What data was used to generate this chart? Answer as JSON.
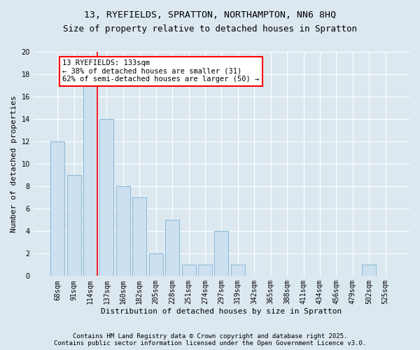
{
  "title1": "13, RYEFIELDS, SPRATTON, NORTHAMPTON, NN6 8HQ",
  "title2": "Size of property relative to detached houses in Spratton",
  "xlabel": "Distribution of detached houses by size in Spratton",
  "ylabel": "Number of detached properties",
  "categories": [
    "68sqm",
    "91sqm",
    "114sqm",
    "137sqm",
    "160sqm",
    "182sqm",
    "205sqm",
    "228sqm",
    "251sqm",
    "274sqm",
    "297sqm",
    "319sqm",
    "342sqm",
    "365sqm",
    "388sqm",
    "411sqm",
    "434sqm",
    "456sqm",
    "479sqm",
    "502sqm",
    "525sqm"
  ],
  "values": [
    12,
    9,
    17,
    14,
    8,
    7,
    2,
    5,
    1,
    1,
    4,
    1,
    0,
    0,
    0,
    0,
    0,
    0,
    0,
    1,
    0
  ],
  "bar_color": "#cce0f0",
  "bar_edge_color": "#8ab8d8",
  "red_line_index": 2,
  "annotation_text": "13 RYEFIELDS: 133sqm\n← 38% of detached houses are smaller (31)\n62% of semi-detached houses are larger (50) →",
  "annotation_box_color": "white",
  "annotation_box_edge_color": "red",
  "ylim": [
    0,
    20
  ],
  "yticks": [
    0,
    2,
    4,
    6,
    8,
    10,
    12,
    14,
    16,
    18,
    20
  ],
  "background_color": "#dce8f0",
  "grid_color": "white",
  "footer_text": "Contains HM Land Registry data © Crown copyright and database right 2025.\nContains public sector information licensed under the Open Government Licence v3.0.",
  "title1_fontsize": 9.5,
  "title2_fontsize": 9,
  "axis_label_fontsize": 8,
  "tick_fontsize": 7,
  "annotation_fontsize": 7.5,
  "footer_fontsize": 6.5
}
